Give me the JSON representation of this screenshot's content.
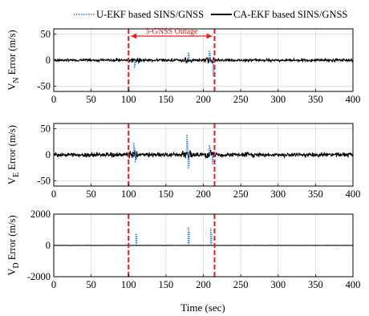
{
  "chart_data": {
    "type": "line",
    "legend": {
      "placement": "top",
      "entries": [
        {
          "label": "U-EKF based SINS/GNSS",
          "color": "#1f77d0",
          "style": "dotted"
        },
        {
          "label": "CA-EKF based SINS/GNSS",
          "color": "#000000",
          "style": "solid"
        }
      ]
    },
    "xlabel": "Time (sec)",
    "xlim": [
      0,
      400
    ],
    "x_ticks": [
      "0",
      "50",
      "100",
      "150",
      "200",
      "250",
      "300",
      "350",
      "400"
    ],
    "grid": true,
    "outage": {
      "start": 100,
      "end": 215,
      "label": "3-GNSS Outage",
      "color": "#e02020"
    },
    "panels": [
      {
        "ylabel_main": "V",
        "ylabel_sub": "N",
        "ylabel_rest": " Error (m/s)",
        "ylim": [
          -60,
          60
        ],
        "y_ticks": [
          "50",
          "0",
          "-50"
        ],
        "y_tick_values": [
          50,
          0,
          -50
        ],
        "ca_ekf_noise_amplitude": 3,
        "u_ekf_spikes": [
          {
            "x": 108,
            "y": -15
          },
          {
            "x": 180,
            "y": 16
          },
          {
            "x": 208,
            "y": 20
          },
          {
            "x": 213,
            "y": -30
          }
        ]
      },
      {
        "ylabel_main": "V",
        "ylabel_sub": "E",
        "ylabel_rest": " Error (m/s)",
        "ylim": [
          -60,
          60
        ],
        "y_ticks": [
          "50",
          "0",
          "-50"
        ],
        "y_tick_values": [
          50,
          0,
          -50
        ],
        "ca_ekf_noise_amplitude": 5,
        "u_ekf_spikes": [
          {
            "x": 107,
            "y": 22
          },
          {
            "x": 109,
            "y": -15
          },
          {
            "x": 178,
            "y": 38
          },
          {
            "x": 180,
            "y": -28
          },
          {
            "x": 208,
            "y": 20
          },
          {
            "x": 212,
            "y": -18
          }
        ]
      },
      {
        "ylabel_main": "V",
        "ylabel_sub": "D",
        "ylabel_rest": " Error (m/s)",
        "ylim": [
          -2000,
          2000
        ],
        "y_ticks": [
          "2000",
          "0",
          "-2000"
        ],
        "y_tick_values": [
          2000,
          0,
          -2000
        ],
        "ca_ekf_noise_amplitude": 10,
        "u_ekf_spikes": [
          {
            "x": 110,
            "y": 800
          },
          {
            "x": 180,
            "y": 1200
          },
          {
            "x": 210,
            "y": 1100
          }
        ]
      }
    ]
  }
}
